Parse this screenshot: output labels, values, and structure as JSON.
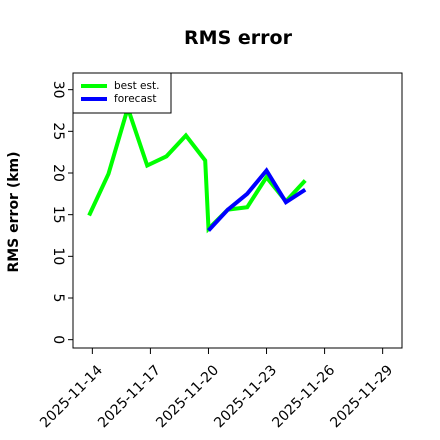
{
  "chart_data": {
    "type": "line",
    "title": "RMS error",
    "xlabel": "",
    "ylabel": "RMS error (km)",
    "x_ticks": [
      "2025-11-14",
      "2025-11-17",
      "2025-11-20",
      "2025-11-23",
      "2025-11-26",
      "2025-11-29"
    ],
    "highlight_tick": "2025-11-20",
    "xlim": [
      "2025-11-13",
      "2025-11-30"
    ],
    "ylim": [
      -1,
      32
    ],
    "y_ticks": [
      0,
      5,
      10,
      15,
      20,
      25,
      30
    ],
    "grid": false,
    "legend_position": "top-left",
    "series": [
      {
        "name": "best est.",
        "color": "#00ff00",
        "points": [
          {
            "x": "2025-11-13 20:00",
            "y": 14.9
          },
          {
            "x": "2025-11-14 20:00",
            "y": 19.9
          },
          {
            "x": "2025-11-15 20:00",
            "y": 27.8
          },
          {
            "x": "2025-11-16 20:00",
            "y": 20.9
          },
          {
            "x": "2025-11-17 20:00",
            "y": 22.0
          },
          {
            "x": "2025-11-18 20:00",
            "y": 24.5
          },
          {
            "x": "2025-11-19 20:00",
            "y": 21.5
          },
          {
            "x": "2025-11-20 00:00",
            "y": 13.3
          },
          {
            "x": "2025-11-21 00:00",
            "y": 15.6
          },
          {
            "x": "2025-11-22 00:00",
            "y": 15.9
          },
          {
            "x": "2025-11-23 00:00",
            "y": 19.5
          },
          {
            "x": "2025-11-24 00:00",
            "y": 16.6
          },
          {
            "x": "2025-11-25 00:00",
            "y": 19.1
          }
        ]
      },
      {
        "name": "forecast",
        "color": "#0000ff",
        "points": [
          {
            "x": "2025-11-20 00:00",
            "y": 13.1
          },
          {
            "x": "2025-11-21 00:00",
            "y": 15.6
          },
          {
            "x": "2025-11-22 00:00",
            "y": 17.5
          },
          {
            "x": "2025-11-23 00:00",
            "y": 20.3
          },
          {
            "x": "2025-11-24 00:00",
            "y": 16.5
          },
          {
            "x": "2025-11-25 00:00",
            "y": 18.0
          }
        ]
      }
    ]
  }
}
